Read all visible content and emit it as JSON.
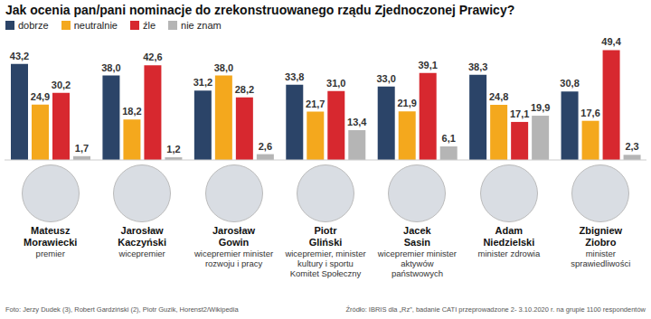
{
  "chart_data": {
    "type": "bar",
    "title": "Jak ocenia pan/pani nominacje do zrekonstruowanego rządu Zjednoczonej Prawicy?",
    "categories": [
      "Mateusz Morawiecki",
      "Jarosław Kaczyński",
      "Jarosław Gowin",
      "Piotr Gliński",
      "Jacek Sasin",
      "Adam Niedzielski",
      "Zbigniew Ziobro"
    ],
    "category_roles": [
      "premier",
      "wicepremier",
      "wicepremier minister rozwoju i pracy",
      "wicepremier, minister kultury i sportu Komitet Społeczny",
      "wicepremier minister aktywów państwowych",
      "minister zdrowia",
      "minister sprawiedliwości"
    ],
    "series": [
      {
        "name": "dobrze",
        "color": "#2b4468",
        "values": [
          43.2,
          38.0,
          31.2,
          33.8,
          33.0,
          38.3,
          30.8
        ],
        "value_labels": [
          "43,2",
          "38,0",
          "31,2",
          "33,8",
          "33,0",
          "38,3",
          "30,8"
        ]
      },
      {
        "name": "neutralnie",
        "color": "#f4a81d",
        "values": [
          24.9,
          18.2,
          38.0,
          21.7,
          21.9,
          24.8,
          17.6
        ],
        "value_labels": [
          "24,9",
          "18,2",
          "38,0",
          "21,7",
          "21,9",
          "24,8",
          "17,6"
        ]
      },
      {
        "name": "źle",
        "color": "#d7282f",
        "values": [
          30.2,
          42.6,
          28.2,
          31.0,
          39.1,
          17.1,
          49.4
        ],
        "value_labels": [
          "30,2",
          "42,6",
          "28,2",
          "31,0",
          "39,1",
          "17,1",
          "49,4"
        ]
      },
      {
        "name": "nie znam",
        "color": "#b5b5b5",
        "values": [
          1.7,
          1.2,
          2.6,
          13.4,
          6.1,
          19.9,
          2.3
        ],
        "value_labels": [
          "1,7",
          "1,2",
          "2,6",
          "13,4",
          "6,1",
          "19,9",
          "2,3"
        ]
      }
    ],
    "ylim": [
      0,
      50
    ],
    "data_labels": true,
    "tick_labels": false,
    "legend": "top left",
    "annotations": [
      "Foto: Jerzy Dudek (3), Robert Gardziński (2), Piotr Guzik, Horenst2/Wikipedia",
      "Źródło: IBRIS dla „Rz”, badanie CATI przeprowadzone 2- 3.10.2020 r. na grupie 1100 respondentów"
    ]
  }
}
